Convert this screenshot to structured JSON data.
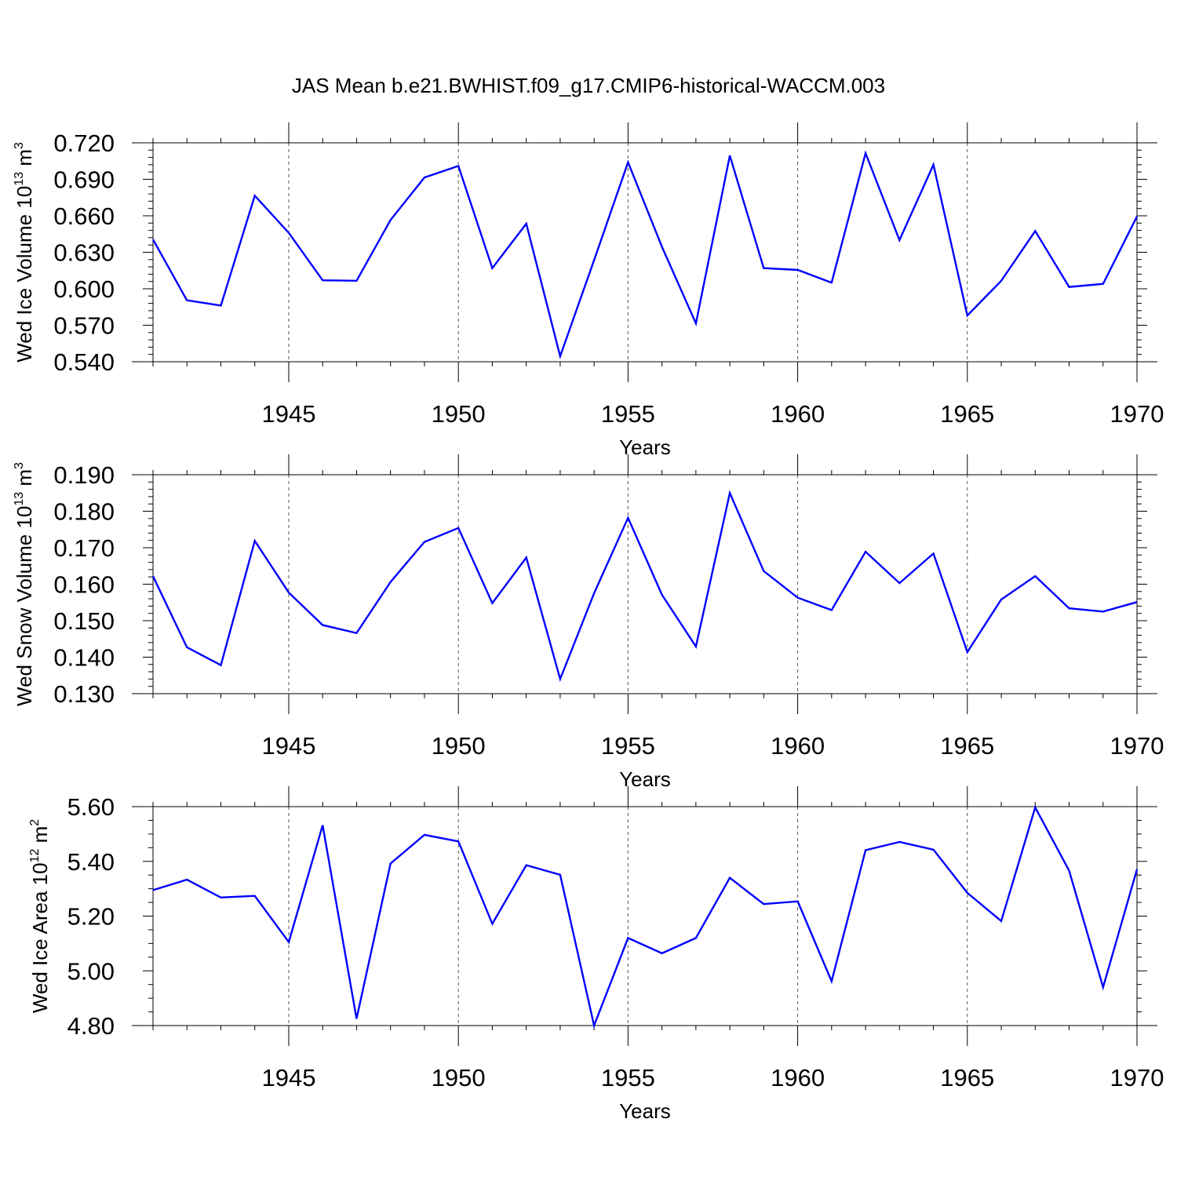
{
  "chart_data": [
    {
      "type": "line",
      "title": "JAS Mean b.e21.BWHIST.f09_g17.CMIP6-historical-WACCM.003",
      "xlabel": "Years",
      "ylabel": "Wed Ice Volume 10",
      "ylabel_exponent": "13",
      "ylabel_unit": "m",
      "ylabel_unit_exponent": "3",
      "xlim": [
        1941,
        1970
      ],
      "ylim": [
        0.54,
        0.72
      ],
      "xticks": [
        "1945",
        "1950",
        "1955",
        "1960",
        "1965",
        "1970"
      ],
      "yticks": [
        "0.540",
        "0.570",
        "0.600",
        "0.630",
        "0.660",
        "0.690",
        "0.720"
      ],
      "grid": "vertical dashed at major x ticks",
      "x": [
        1941,
        1942,
        1943,
        1944,
        1945,
        1946,
        1947,
        1948,
        1949,
        1950,
        1951,
        1952,
        1953,
        1954,
        1955,
        1956,
        1957,
        1958,
        1959,
        1960,
        1961,
        1962,
        1963,
        1964,
        1965,
        1966,
        1967,
        1968,
        1969,
        1970
      ],
      "series": [
        {
          "name": "Wed Ice Volume",
          "color": "#0000ff",
          "values": [
            0.6405,
            0.5905,
            0.5862,
            0.6765,
            0.646,
            0.607,
            0.6066,
            0.6565,
            0.6915,
            0.701,
            0.617,
            0.6535,
            0.5445,
            0.6235,
            0.704,
            0.6345,
            0.5715,
            0.7095,
            0.617,
            0.6155,
            0.605,
            0.7115,
            0.64,
            0.702,
            0.578,
            0.6065,
            0.6475,
            0.6015,
            0.604,
            0.6595
          ]
        }
      ]
    },
    {
      "type": "line",
      "title": "",
      "xlabel": "Years",
      "ylabel": "Wed Snow Volume 10",
      "ylabel_exponent": "13",
      "ylabel_unit": "m",
      "ylabel_unit_exponent": "3",
      "xlim": [
        1941,
        1970
      ],
      "ylim": [
        0.13,
        0.19
      ],
      "xticks": [
        "1945",
        "1950",
        "1955",
        "1960",
        "1965",
        "1970"
      ],
      "yticks": [
        "0.130",
        "0.140",
        "0.150",
        "0.160",
        "0.170",
        "0.180",
        "0.190"
      ],
      "grid": "vertical dashed at major x ticks",
      "x": [
        1941,
        1942,
        1943,
        1944,
        1945,
        1946,
        1947,
        1948,
        1949,
        1950,
        1951,
        1952,
        1953,
        1954,
        1955,
        1956,
        1957,
        1958,
        1959,
        1960,
        1961,
        1962,
        1963,
        1964,
        1965,
        1966,
        1967,
        1968,
        1969,
        1970
      ],
      "series": [
        {
          "name": "Wed Snow Volume",
          "color": "#0000ff",
          "values": [
            0.1622,
            0.1427,
            0.1378,
            0.1719,
            0.1577,
            0.1488,
            0.1466,
            0.1606,
            0.1716,
            0.1754,
            0.1548,
            0.1673,
            0.134,
            0.1575,
            0.1782,
            0.1571,
            0.1429,
            0.185,
            0.1636,
            0.1563,
            0.1529,
            0.1689,
            0.1603,
            0.1684,
            0.1414,
            0.1558,
            0.1622,
            0.1534,
            0.1525,
            0.1551
          ]
        }
      ]
    },
    {
      "type": "line",
      "title": "",
      "xlabel": "Years",
      "ylabel": "Wed Ice Area 10",
      "ylabel_exponent": "12",
      "ylabel_unit": "m",
      "ylabel_unit_exponent": "2",
      "xlim": [
        1941,
        1970
      ],
      "ylim": [
        4.8,
        5.6
      ],
      "xticks": [
        "1945",
        "1950",
        "1955",
        "1960",
        "1965",
        "1970"
      ],
      "yticks": [
        "4.80",
        "5.00",
        "5.20",
        "5.40",
        "5.60"
      ],
      "grid": "vertical dashed at major x ticks",
      "x": [
        1941,
        1942,
        1943,
        1944,
        1945,
        1946,
        1947,
        1948,
        1949,
        1950,
        1951,
        1952,
        1953,
        1954,
        1955,
        1956,
        1957,
        1958,
        1959,
        1960,
        1961,
        1962,
        1963,
        1964,
        1965,
        1966,
        1967,
        1968,
        1969,
        1970
      ],
      "series": [
        {
          "name": "Wed Ice Area",
          "color": "#0000ff",
          "values": [
            5.295,
            5.333,
            5.268,
            5.274,
            5.105,
            5.532,
            4.825,
            5.392,
            5.497,
            5.473,
            5.172,
            5.386,
            5.351,
            4.8,
            5.12,
            5.064,
            5.12,
            5.34,
            5.244,
            5.254,
            4.962,
            5.441,
            5.471,
            5.443,
            5.285,
            5.182,
            5.597,
            5.366,
            4.94,
            5.371
          ]
        }
      ]
    }
  ]
}
